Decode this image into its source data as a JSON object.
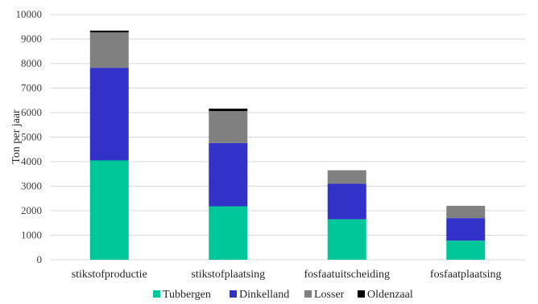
{
  "chart_data": {
    "type": "bar",
    "stacked": true,
    "title": "",
    "xlabel": "",
    "ylabel": "Ton per jaar",
    "ylim": [
      0,
      10000
    ],
    "yticks": [
      0,
      1000,
      2000,
      3000,
      4000,
      5000,
      6000,
      7000,
      8000,
      9000,
      10000
    ],
    "grid": true,
    "legend_position": "bottom",
    "categories": [
      "stikstofproductie",
      "stikstofplaatsing",
      "fosfaatuitscheiding",
      "fosfaatplaatsing"
    ],
    "series": [
      {
        "name": "Tubbergen",
        "color": "#00c79a",
        "values": [
          4050,
          2180,
          1650,
          780
        ]
      },
      {
        "name": "Dinkelland",
        "color": "#3232c8",
        "values": [
          3780,
          2580,
          1450,
          920
        ]
      },
      {
        "name": "Losser",
        "color": "#808080",
        "values": [
          1440,
          1300,
          550,
          500
        ]
      },
      {
        "name": "Oldenzaal",
        "color": "#000000",
        "values": [
          70,
          100,
          0,
          0
        ]
      }
    ]
  }
}
